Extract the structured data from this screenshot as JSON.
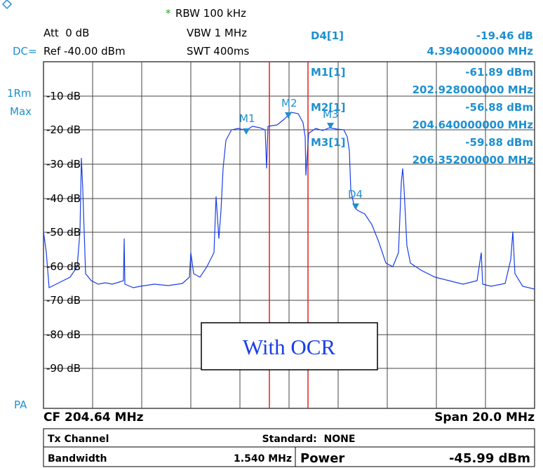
{
  "header": {
    "rbw_star": "*",
    "rbw": "RBW 100 kHz",
    "att": "Att  0 dB",
    "vbw": "VBW 1 MHz",
    "dc": "DC=",
    "ref": "Ref -40.00 dBm",
    "swt": "SWT 400ms",
    "trace": [
      "1Rm",
      "Max"
    ]
  },
  "readouts": [
    {
      "label": "D4[1]",
      "value": "-19.46 dB",
      "freq": "4.394000000 MHz"
    },
    {
      "label": "M1[1]",
      "value": "-61.89 dBm",
      "freq": "202.928000000 MHz"
    },
    {
      "label": "M2[1]",
      "value": "-56.88 dBm",
      "freq": "204.640000000 MHz"
    },
    {
      "label": "M3[1]",
      "value": "-59.88 dBm",
      "freq": "206.352000000 MHz"
    }
  ],
  "y_axis_labels": [
    "-10 dB",
    "-20 dB",
    "-30 dB",
    "-40 dB",
    "-50 dB",
    "-60 dB",
    "-70 dB",
    "-80 dB",
    "-90 dB"
  ],
  "markers": [
    "M1",
    "M2",
    "M3",
    "D4"
  ],
  "overlay": "With OCR",
  "footer": {
    "pa": "PA",
    "cf": "CF 204.64 MHz",
    "span": "Span 20.0 MHz"
  },
  "table": {
    "rows": [
      [
        "Tx Channel",
        "Standard:  NONE"
      ],
      [
        "Bandwidth",
        "1.540 MHz",
        "Power",
        "-45.99 dBm"
      ]
    ]
  }
}
